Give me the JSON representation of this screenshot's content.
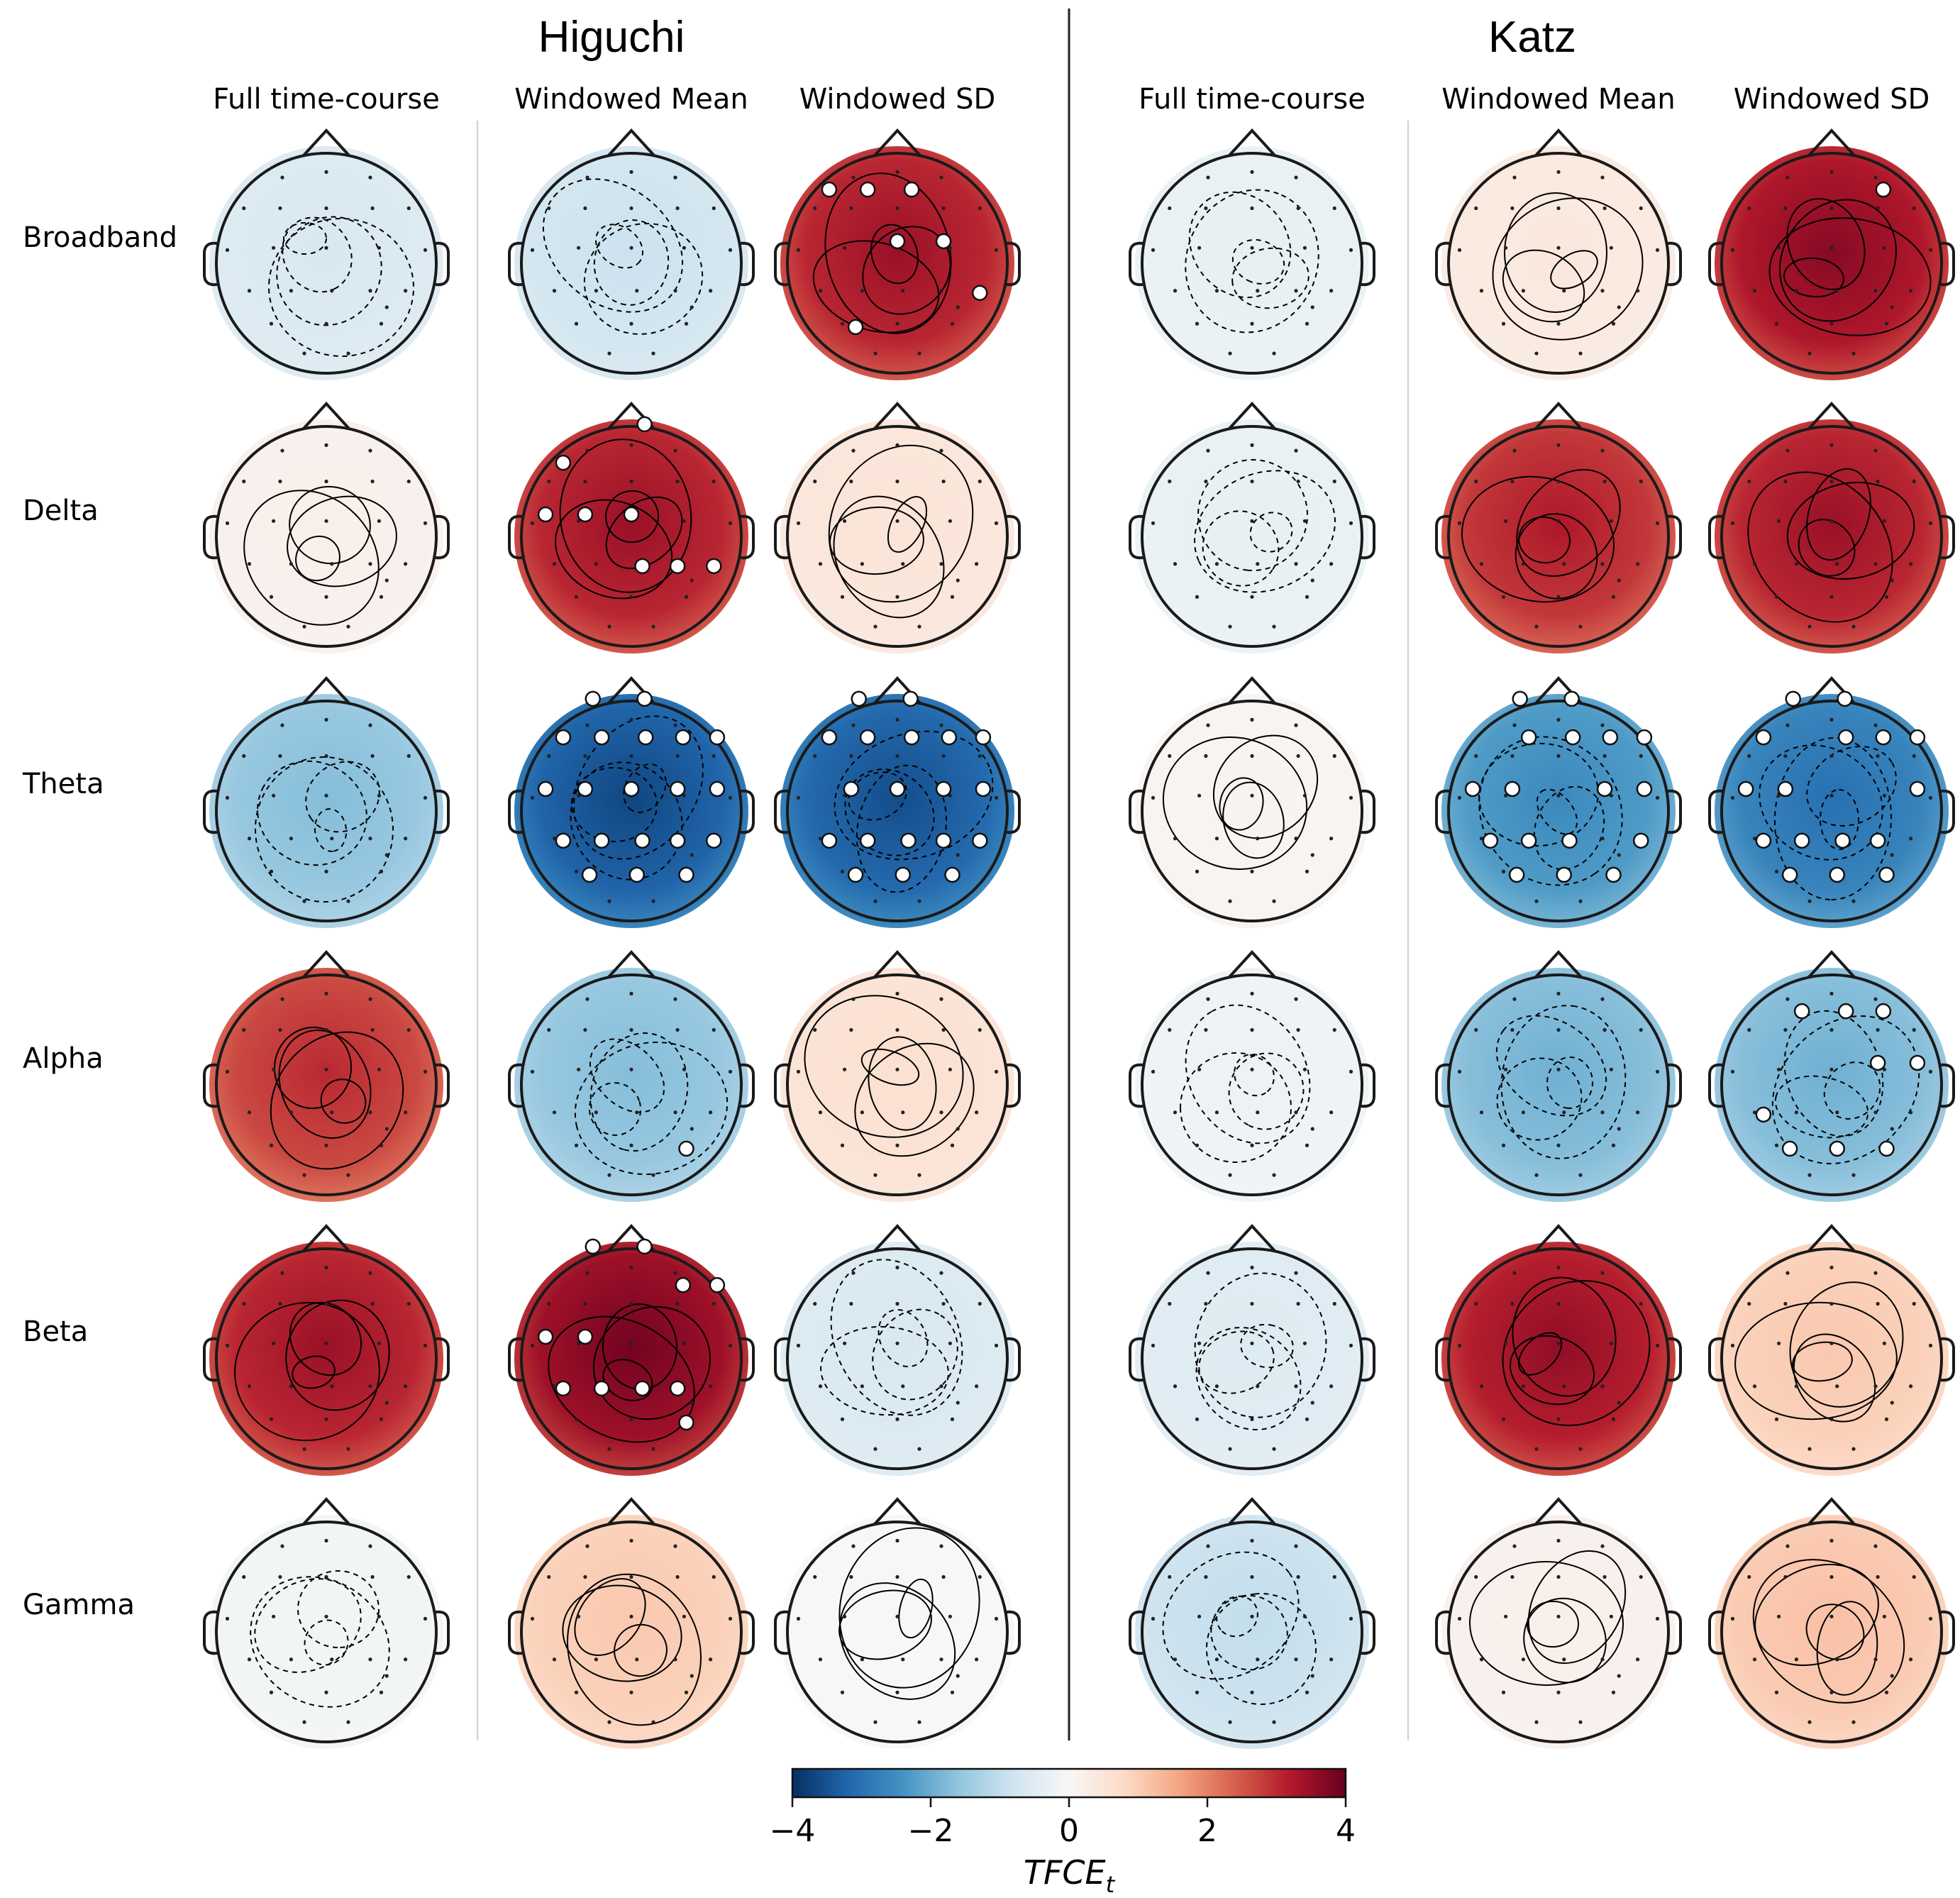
{
  "chart_data": {
    "type": "heatmap",
    "description_kind": "topographic_grid",
    "groups": [
      {
        "title": "Higuchi",
        "columns": [
          "Full time-course",
          "Windowed Mean",
          "Windowed SD"
        ]
      },
      {
        "title": "Katz",
        "columns": [
          "Full time-course",
          "Windowed Mean",
          "Windowed SD"
        ]
      }
    ],
    "rows": [
      "Broadband",
      "Delta",
      "Theta",
      "Alpha",
      "Beta",
      "Gamma"
    ],
    "overall_level_tfce_t": [
      [
        -0.6,
        -0.8,
        3.2,
        -0.3,
        0.4,
        3.4
      ],
      [
        0.2,
        3.2,
        0.5,
        -0.3,
        3.0,
        3.2
      ],
      [
        -1.6,
        -3.4,
        -3.3,
        0.1,
        -2.4,
        -2.8
      ],
      [
        2.8,
        -1.6,
        0.6,
        -0.2,
        -1.8,
        -1.8
      ],
      [
        3.2,
        3.6,
        -0.6,
        -0.5,
        3.3,
        1.0
      ],
      [
        -0.1,
        1.0,
        0.0,
        -0.9,
        0.2,
        1.1
      ]
    ],
    "significant_sensor_counts": [
      [
        0,
        0,
        7,
        0,
        0,
        1
      ],
      [
        0,
        8,
        0,
        0,
        0,
        0
      ],
      [
        0,
        20,
        19,
        0,
        17,
        16
      ],
      [
        0,
        1,
        0,
        0,
        0,
        9
      ],
      [
        0,
        11,
        0,
        0,
        0,
        0
      ],
      [
        0,
        0,
        0,
        0,
        0,
        0
      ]
    ],
    "colorbar": {
      "label": "TFCE",
      "label_subscript": "t",
      "vmin": -4,
      "vmax": 4,
      "ticks": [
        "−4",
        "−2",
        "0",
        "2",
        "4"
      ],
      "colormap": "RdBu_r",
      "colors": [
        "#053061",
        "#2166ac",
        "#4393c3",
        "#92c5de",
        "#d1e5f0",
        "#f7f7f7",
        "#fddbc7",
        "#f4a582",
        "#d6604d",
        "#b2182b",
        "#67001f"
      ]
    }
  }
}
